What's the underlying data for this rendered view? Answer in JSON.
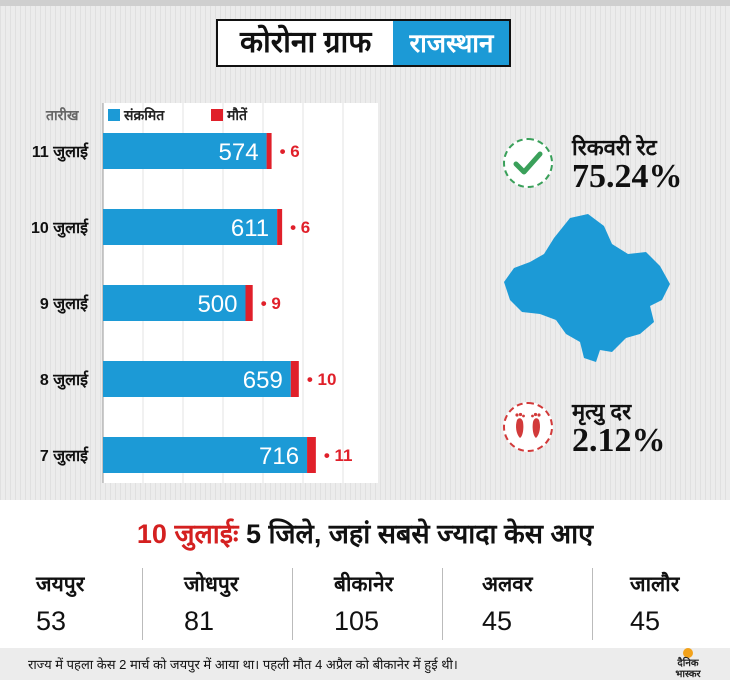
{
  "header": {
    "title": "कोरोना ग्राफ",
    "region": "राजस्थान"
  },
  "chart_data": {
    "type": "bar",
    "orientation": "horizontal",
    "axis_header": "तारीख",
    "categories": [
      "11 जुलाई",
      "10 जुलाई",
      "9 जुलाई",
      "8 जुलाई",
      "7 जुलाई"
    ],
    "series": [
      {
        "name": "संक्रमित",
        "values": [
          574,
          611,
          500,
          659,
          716
        ],
        "color": "#1c9ad6"
      },
      {
        "name": "मौतें",
        "values": [
          6,
          6,
          9,
          10,
          11
        ],
        "color": "#e0202a"
      }
    ],
    "xlim": [
      0,
      800
    ],
    "grid": true,
    "legend": "top"
  },
  "recovery": {
    "label": "रिकवरी रेट",
    "value": "75.24%",
    "icon": "check-icon",
    "color": "#3aa05a"
  },
  "mortality": {
    "label": "मृत्यु दर",
    "value": "2.12%",
    "icon": "footprints-icon",
    "color": "#d23a3a"
  },
  "map": {
    "icon": "rajasthan-map",
    "color": "#1c9ad6"
  },
  "headline": {
    "date": "10 जुलाईः",
    "text": " 5 जिले, जहां सबसे ज्यादा केस आए"
  },
  "districts": [
    {
      "name": "जयपुर",
      "value": "53"
    },
    {
      "name": "जोधपुर",
      "value": "81"
    },
    {
      "name": "बीकानेर",
      "value": "105"
    },
    {
      "name": "अलवर",
      "value": "45"
    },
    {
      "name": "जालौर",
      "value": "45"
    }
  ],
  "footnote": "राज्य में पहला केस 2 मार्च को जयपुर में आया था। पहली मौत 4 अप्रैल को बीकानेर में हुई थी।",
  "logo": {
    "line1": "दैनिक",
    "line2": "भास्कर"
  }
}
